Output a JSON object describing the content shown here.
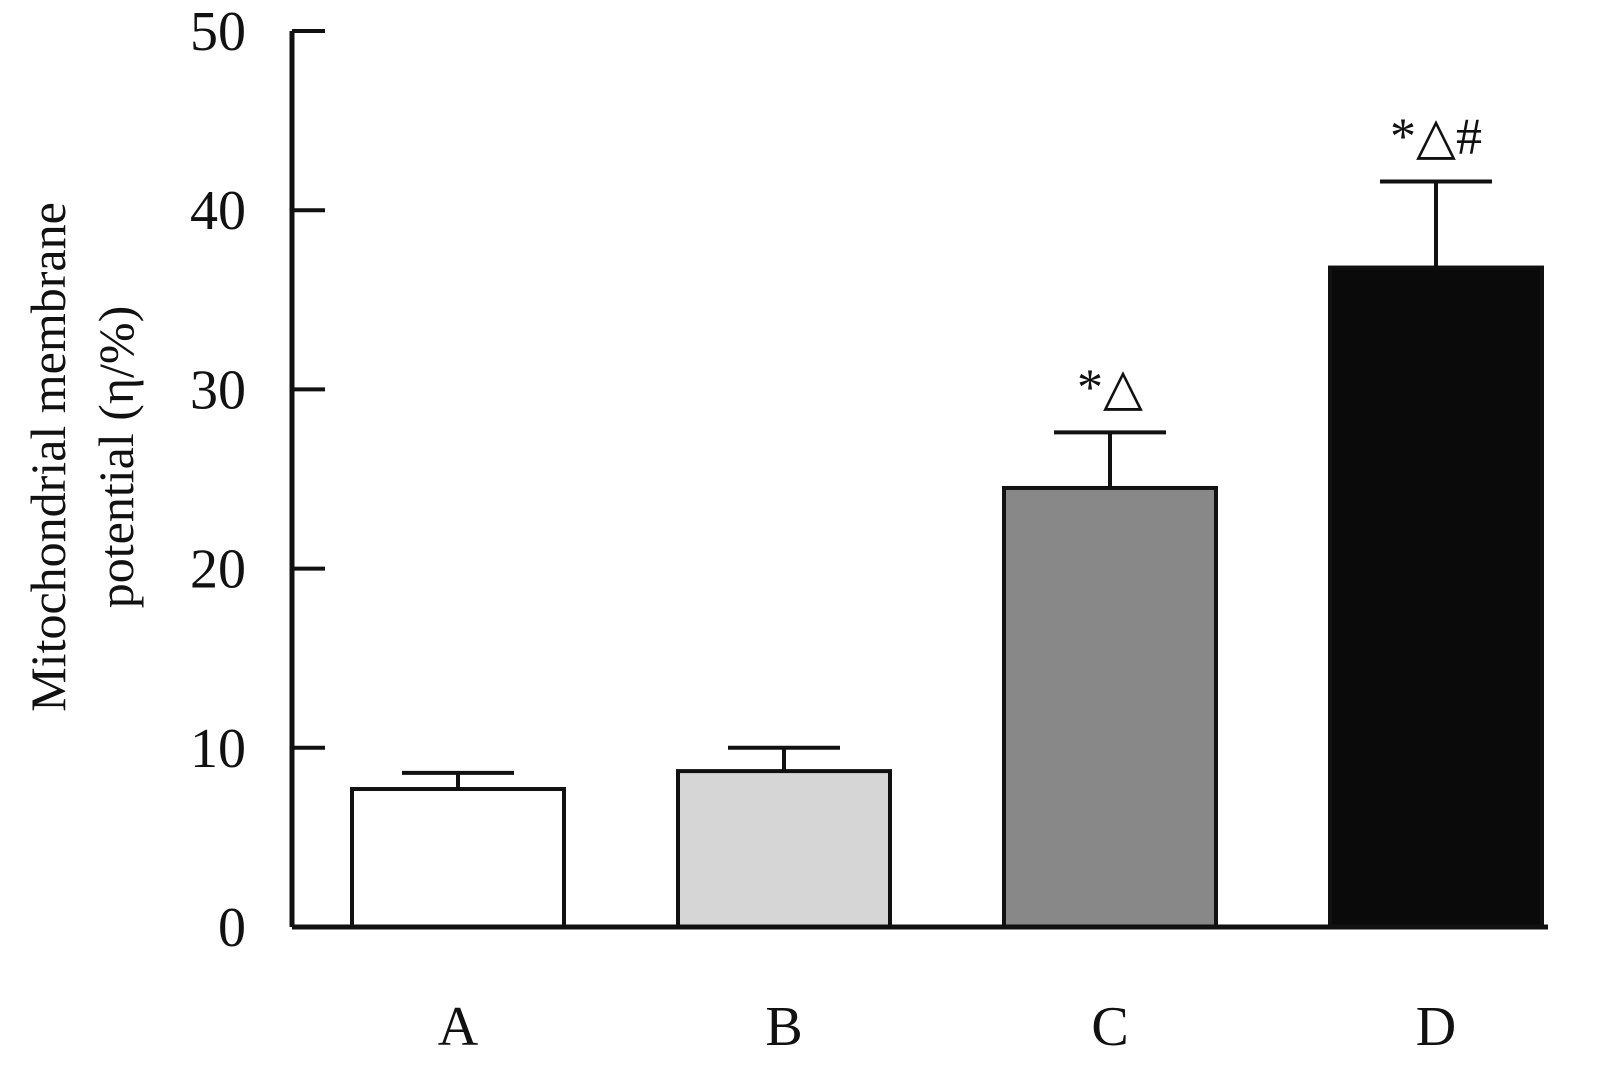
{
  "chart_data": {
    "type": "bar",
    "title": "",
    "xlabel": "",
    "ylabel_lines": [
      "Mitochondrial membrane",
      "potential (η/%)"
    ],
    "categories": [
      "A",
      "B",
      "C",
      "D"
    ],
    "values": [
      7.7,
      8.7,
      24.5,
      36.8
    ],
    "errors": [
      0.9,
      1.3,
      3.1,
      4.8
    ],
    "significance": [
      "",
      "",
      "*△",
      "*△#"
    ],
    "bar_colors": [
      "#ffffff",
      "#d6d6d6",
      "#888888",
      "#0a0a0a"
    ],
    "ylim": [
      0,
      50
    ],
    "yticks": [
      0,
      10,
      20,
      30,
      40,
      50
    ],
    "grid": false,
    "legend": "none"
  }
}
